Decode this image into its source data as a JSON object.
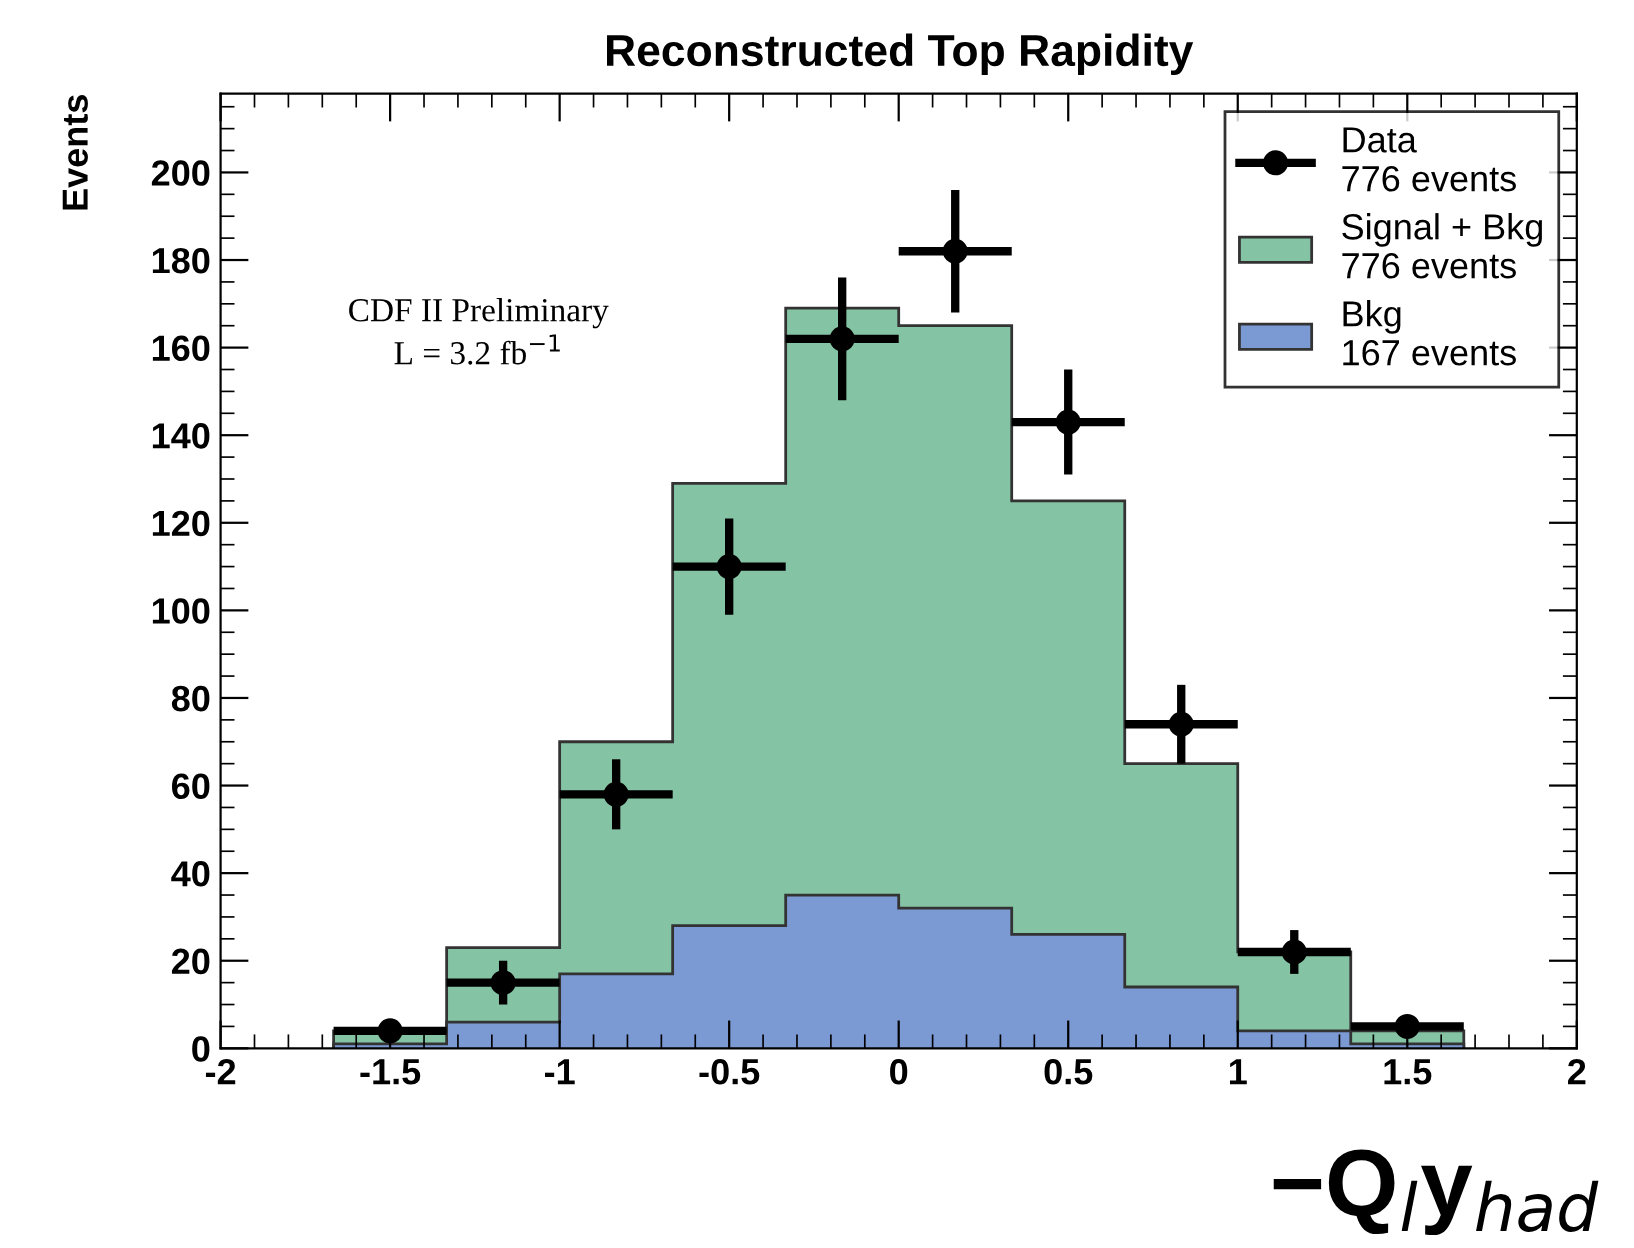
{
  "chart_data": {
    "type": "histogram",
    "title": "Reconstructed Top Rapidity",
    "xlabel": "−Q$_{l}$y$_{had}$",
    "ylabel": "Events",
    "bins": [
      -1.6667,
      -1.3333,
      -1,
      -0.6667,
      -0.3333,
      0,
      0.3333,
      0.6667,
      1,
      1.3333,
      1.6667
    ],
    "series": [
      {
        "name": "Signal + Bkg\n776 events",
        "color": "#84c4a4",
        "values": [
          4,
          23,
          70,
          129,
          169,
          165,
          125,
          65,
          22,
          4
        ]
      },
      {
        "name": "Bkg\n167 events",
        "color": "#7b9ad4",
        "values": [
          1,
          6,
          17,
          28,
          35,
          32,
          26,
          14,
          4,
          1
        ]
      },
      {
        "name": "Data\n776 events",
        "type": "scatter",
        "color": "#000000",
        "marker": "circle",
        "x": [
          -1.5,
          -1.1667,
          -0.8333,
          -0.5,
          -0.1667,
          0.1667,
          0.5,
          0.8333,
          1.1667,
          1.5
        ],
        "values": [
          4,
          15,
          58,
          110,
          162,
          182,
          143,
          74,
          22,
          5
        ],
        "errors": [
          2,
          5,
          8,
          11,
          14,
          14,
          12,
          9,
          5,
          2
        ],
        "xerrors": [
          0.1667,
          0.1667,
          0.1667,
          0.1667,
          0.1667,
          0.1667,
          0.1667,
          0.1667,
          0.1667,
          0.1667
        ]
      }
    ],
    "annotations": [
      "CDF II Preliminary",
      "L = 3.2 fb$^{−1}$"
    ],
    "xlim": [
      -2,
      2
    ],
    "xticks": [
      -2,
      -1.5,
      -1,
      -0.5,
      0,
      0.5,
      1,
      1.5,
      2
    ],
    "ylim": [
      0,
      218
    ],
    "yticks": [
      0,
      20,
      40,
      60,
      80,
      100,
      120,
      140,
      160,
      180,
      200
    ],
    "grid": false,
    "legend": "top right"
  }
}
